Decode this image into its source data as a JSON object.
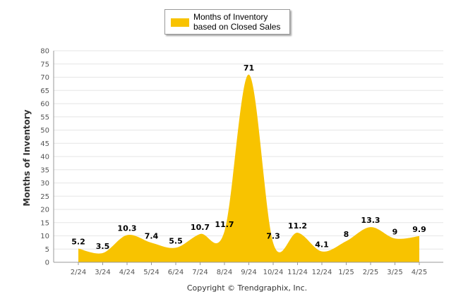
{
  "legend": {
    "label": "Months of Inventory based on Closed Sales"
  },
  "copyright": "Copyright © Trendgraphix, Inc.",
  "colors": {
    "series": "#f8c300",
    "grid": "#e6e6e6",
    "axis": "#555555",
    "tick_text": "#555555"
  },
  "chart_data": {
    "type": "area",
    "categories": [
      "2/24",
      "3/24",
      "4/24",
      "5/24",
      "6/24",
      "7/24",
      "8/24",
      "9/24",
      "10/24",
      "11/24",
      "12/24",
      "1/25",
      "2/25",
      "3/25",
      "4/25"
    ],
    "series": [
      {
        "name": "Months of Inventory based on Closed Sales",
        "values": [
          5.2,
          3.5,
          10.3,
          7.4,
          5.5,
          10.7,
          11.7,
          71,
          7.3,
          11.2,
          4.1,
          8,
          13.3,
          9,
          9.9
        ]
      }
    ],
    "data_labels": [
      "5.2",
      "3.5",
      "10.3",
      "7.4",
      "5.5",
      "10.7",
      "11.7",
      "71",
      "7.3",
      "11.2",
      "4.1",
      "8",
      "13.3",
      "9",
      "9.9"
    ],
    "ylabel": "Months of Inventory",
    "xlabel": "",
    "ylim": [
      0,
      80
    ],
    "yticks": [
      0,
      5,
      10,
      15,
      20,
      25,
      30,
      35,
      40,
      45,
      50,
      55,
      60,
      65,
      70,
      75,
      80
    ],
    "grid": true,
    "legend_position": "top-center",
    "curve": "smooth"
  }
}
